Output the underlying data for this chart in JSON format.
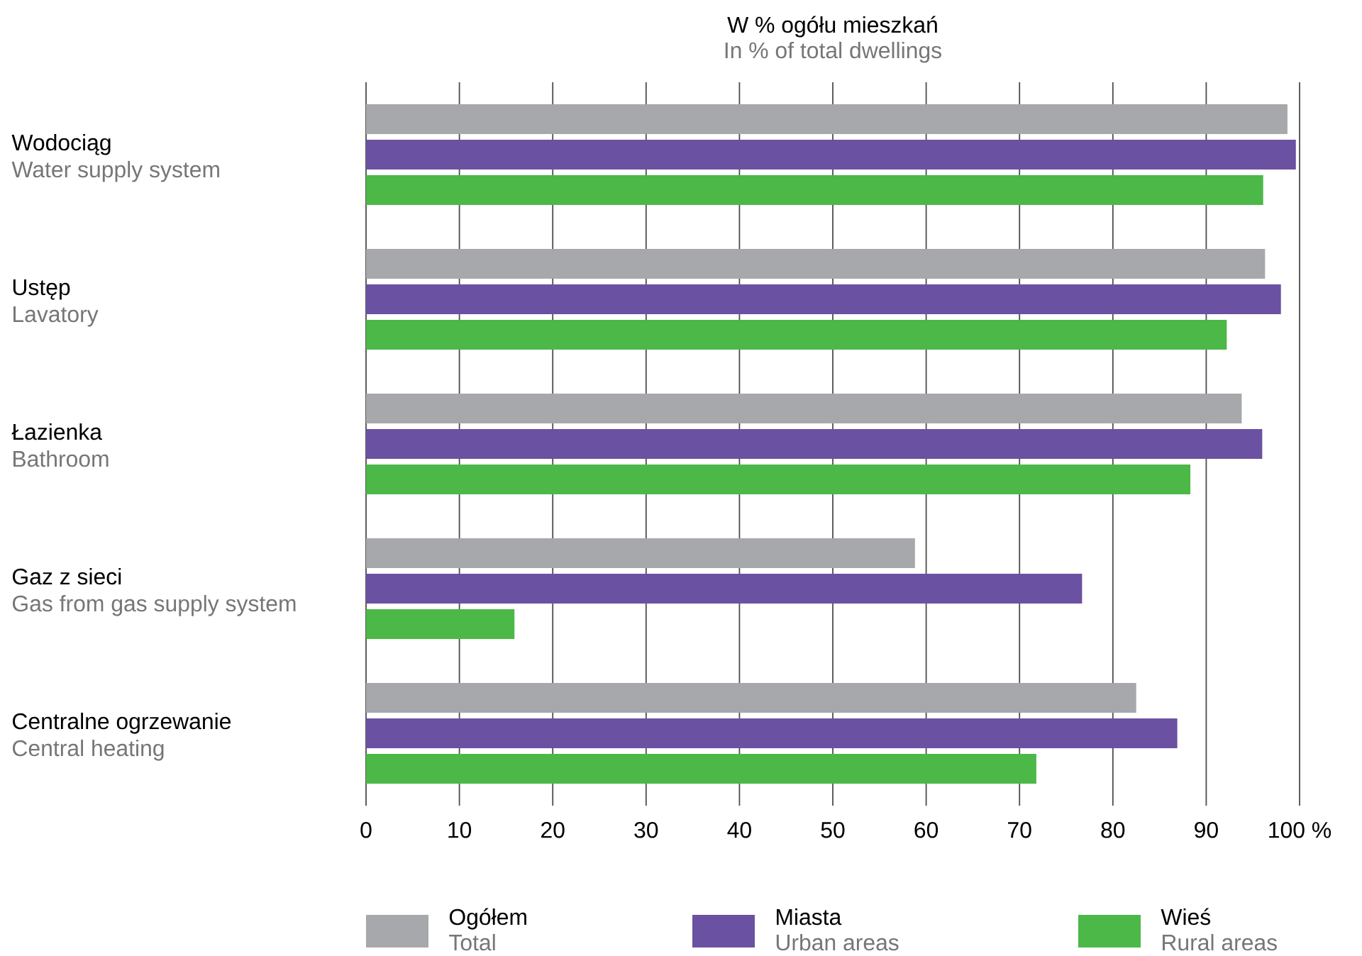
{
  "chart_data": {
    "type": "bar",
    "orientation": "horizontal",
    "title": "W % ogółu mieszkań",
    "subtitle": "In % of total dwellings",
    "categories": [
      "Wodociąg",
      "Ustęp",
      "Łazienka",
      "Gaz z sieci",
      "Centralne ogrzewanie"
    ],
    "series": [
      {
        "name": "Ogółem",
        "color": "#a7a8ab",
        "values": [
          98.7,
          96.3,
          93.8,
          58.8,
          82.5
        ]
      },
      {
        "name": "Miasta",
        "color": "#6b51a1",
        "values": [
          99.6,
          98.0,
          96.0,
          76.7,
          86.9
        ]
      },
      {
        "name": "Wieś",
        "color": "#4cb848",
        "values": [
          96.1,
          92.2,
          88.3,
          15.9,
          71.8
        ]
      }
    ],
    "annotations": [
      "Water supply system",
      "Lavatory",
      "Bathroom",
      "Gas from gas supply system",
      "Central heating",
      "Total",
      "Urban areas",
      "Rural areas"
    ],
    "xlim": [
      0,
      100
    ],
    "xticks": [
      0,
      10,
      20,
      30,
      40,
      50,
      60,
      70,
      80,
      90,
      {
        "value": 100,
        "label": "100 %"
      }
    ],
    "grid": "x",
    "legend": "bottom"
  }
}
